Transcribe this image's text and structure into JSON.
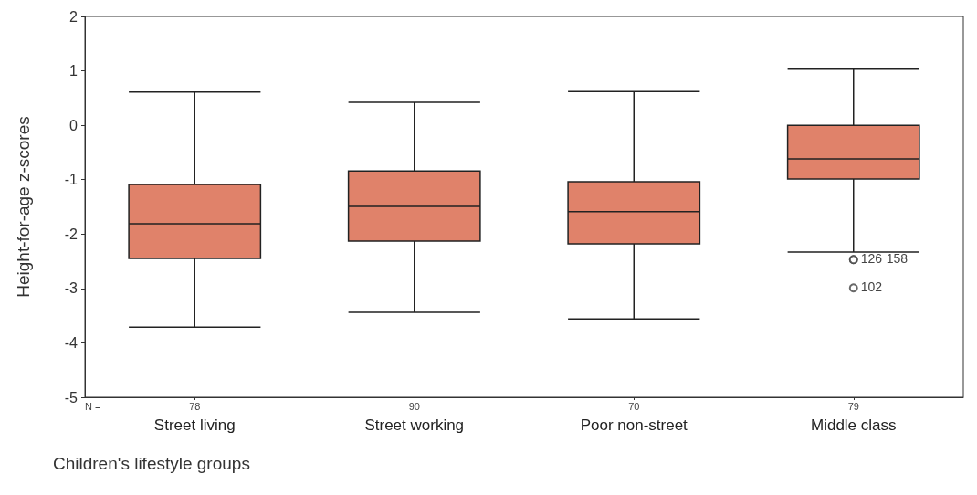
{
  "chart_data": {
    "type": "box",
    "xlabel": "Children's lifestyle groups",
    "ylabel": "Height-for-age z-scores",
    "categories": [
      "Street living",
      "Street working",
      "Poor non-street",
      "Middle class"
    ],
    "series": [
      {
        "color": "#e0826a",
        "boxes": [
          {
            "low": -3.71,
            "q1": -2.45,
            "median": -1.81,
            "q3": -1.09,
            "high": 0.61
          },
          {
            "low": -3.44,
            "q1": -2.13,
            "median": -1.49,
            "q3": -0.84,
            "high": 0.42
          },
          {
            "low": -3.56,
            "q1": -2.18,
            "median": -1.59,
            "q3": -1.04,
            "high": 0.62
          },
          {
            "low": -2.33,
            "q1": -0.99,
            "median": -0.62,
            "q3": 0.0,
            "high": 1.03,
            "outliers": [
              -2.47,
              -2.47,
              -2.99
            ]
          }
        ]
      }
    ],
    "ylim": [
      -5,
      2
    ],
    "yticks": [
      -5,
      -4,
      -3,
      -2,
      -1,
      0,
      1,
      2
    ],
    "grid": false,
    "annotations": [
      "N =",
      "78",
      "90",
      "70",
      "79",
      "126",
      "158",
      "102"
    ]
  }
}
